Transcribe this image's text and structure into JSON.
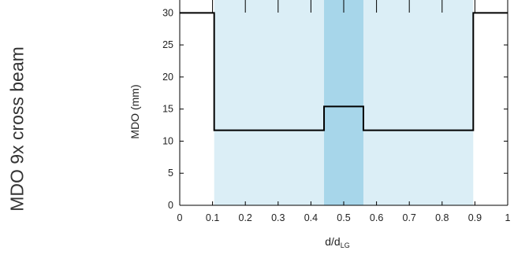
{
  "side_title": "MDO 9x cross beam",
  "chart_data": {
    "type": "line",
    "title": "",
    "xlabel": "d/d",
    "xlabel_subscript": "LG",
    "ylabel": "MDO (mm)",
    "xlim": [
      0,
      1
    ],
    "ylim": [
      0,
      32
    ],
    "xticks": [
      "0",
      "0.1",
      "0.2",
      "0.3",
      "0.4",
      "0.5",
      "0.6",
      "0.7",
      "0.8",
      "0.9",
      "1"
    ],
    "yticks": [
      "0",
      "5",
      "10",
      "15",
      "20",
      "25",
      "30"
    ],
    "grid": false,
    "shaded_regions": [
      {
        "x": [
          0.105,
          0.895
        ],
        "color": "#dbeef6"
      },
      {
        "x": [
          0.44,
          0.56
        ],
        "color": "#a7d6ea"
      }
    ],
    "series": [
      {
        "x": [
          0,
          0.105,
          0.105,
          0.44,
          0.44,
          0.56,
          0.56,
          0.895,
          0.895,
          1
        ],
        "y": [
          30,
          30,
          11.7,
          11.7,
          15.4,
          15.4,
          11.7,
          11.7,
          30,
          30
        ],
        "color": "#000000"
      }
    ]
  }
}
